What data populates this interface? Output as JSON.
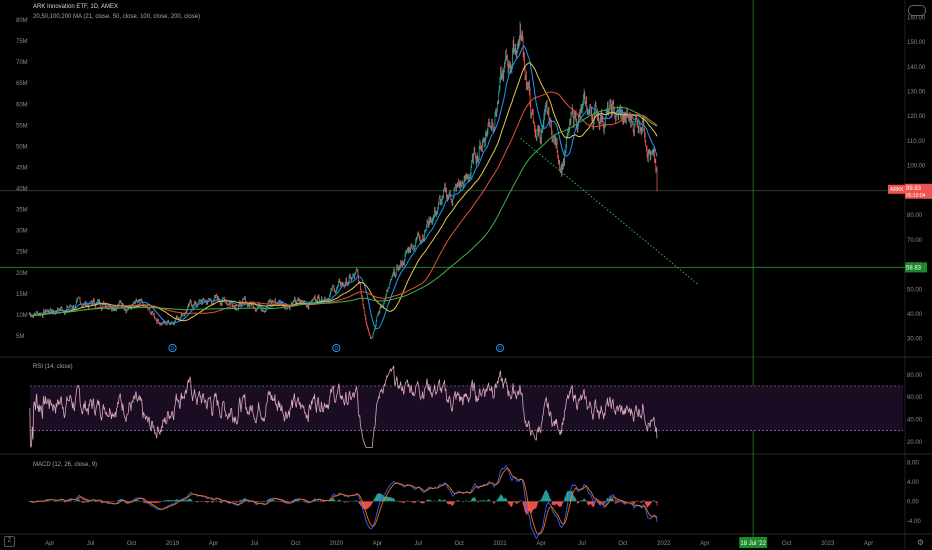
{
  "symbol_line": "ARK Innovation ETF, 1D, AMEX",
  "ma_line": "20,50,100,200 MA (21, close, 50, close, 100, close, 200, close)",
  "rsi_line": "RSI (14, close)",
  "macd_line": "MACD (12, 26, close, 9)",
  "zoom_button": "Z",
  "settings_icon": "gear-icon",
  "colors": {
    "background": "#000000",
    "candle_up": "#26a69a",
    "candle_down": "#ef5350",
    "ma20": "#2196f3",
    "ma50": "#e6c84a",
    "ma100": "#e5533b",
    "ma200": "#3db34a",
    "rsi": "#d8a8b8",
    "rsi_band": "#1a0c22",
    "macd_line": "#2962ff",
    "signal_line": "#ff6d00",
    "hline": "#2a7a2a",
    "trendline": "#2fb84a",
    "vline": "#1e6b1e"
  },
  "chart_data": [
    {
      "type": "candlestick",
      "title": "ARK Innovation ETF, 1D, AMEX",
      "x_tick_labels": [
        "Apr",
        "Jul",
        "Oct",
        "2019",
        "Apr",
        "Jul",
        "Oct",
        "2020",
        "Apr",
        "Jul",
        "Oct",
        "2021",
        "Apr",
        "Jul",
        "Oct",
        "2022",
        "Apr",
        "18 Jul '22",
        "Oct",
        "2023",
        "Apr"
      ],
      "y_right_ticks": [
        30,
        40,
        50,
        60,
        70,
        80,
        90,
        100,
        110,
        120,
        130,
        140,
        150,
        160
      ],
      "y_left_ticks": [
        "5M",
        "10M",
        "15M",
        "20M",
        "25M",
        "30M",
        "35M",
        "40M",
        "45M",
        "50M",
        "55M",
        "60M",
        "65M",
        "70M",
        "75M",
        "80M"
      ],
      "ylim": [
        23,
        167
      ],
      "price_path": [
        [
          "2018-02",
          40
        ],
        [
          "2018-04",
          42
        ],
        [
          "2018-06",
          44
        ],
        [
          "2018-08",
          45
        ],
        [
          "2018-10",
          43
        ],
        [
          "2018-12",
          36
        ],
        [
          "2019-02",
          44
        ],
        [
          "2019-04",
          46
        ],
        [
          "2019-06",
          44
        ],
        [
          "2019-08",
          45
        ],
        [
          "2019-10",
          44
        ],
        [
          "2019-12",
          49
        ],
        [
          "2020-02",
          55
        ],
        [
          "2020-03",
          32
        ],
        [
          "2020-04",
          46
        ],
        [
          "2020-06",
          68
        ],
        [
          "2020-08",
          84
        ],
        [
          "2020-10",
          93
        ],
        [
          "2020-12",
          123
        ],
        [
          "2021-02",
          155
        ],
        [
          "2021-03",
          112
        ],
        [
          "2021-04",
          117
        ],
        [
          "2021-05",
          102
        ],
        [
          "2021-06",
          120
        ],
        [
          "2021-08",
          122
        ],
        [
          "2021-10",
          117
        ],
        [
          "2021-11",
          121
        ],
        [
          "2021-12",
          94
        ]
      ],
      "moving_averages": [
        "MA 20",
        "MA 50",
        "MA 100",
        "MA 200"
      ],
      "price_labels": {
        "last": "89.83",
        "last_symbol": "ARKK",
        "countdown": "05:19:04",
        "support": "58.83"
      },
      "support_line": 58.83,
      "trendline": {
        "from": [
          "2021-02",
          111
        ],
        "to": [
          "2022-03",
          52
        ]
      },
      "event_markers": [
        "D",
        "D",
        "D"
      ]
    },
    {
      "type": "line",
      "title": "RSI (14, close)",
      "y_ticks": [
        20,
        40,
        60,
        80
      ],
      "ylim": [
        10,
        95
      ],
      "bands": [
        30,
        70
      ]
    },
    {
      "type": "bar",
      "title": "MACD (12, 26, close, 9)",
      "y_ticks": [
        "-4.00",
        "0.00",
        "4.00",
        "8.00"
      ],
      "ylim": [
        -6.5,
        9.5
      ],
      "series": [
        {
          "name": "MACD",
          "values": []
        },
        {
          "name": "Signal",
          "values": []
        },
        {
          "name": "Histogram",
          "values": []
        }
      ]
    }
  ]
}
